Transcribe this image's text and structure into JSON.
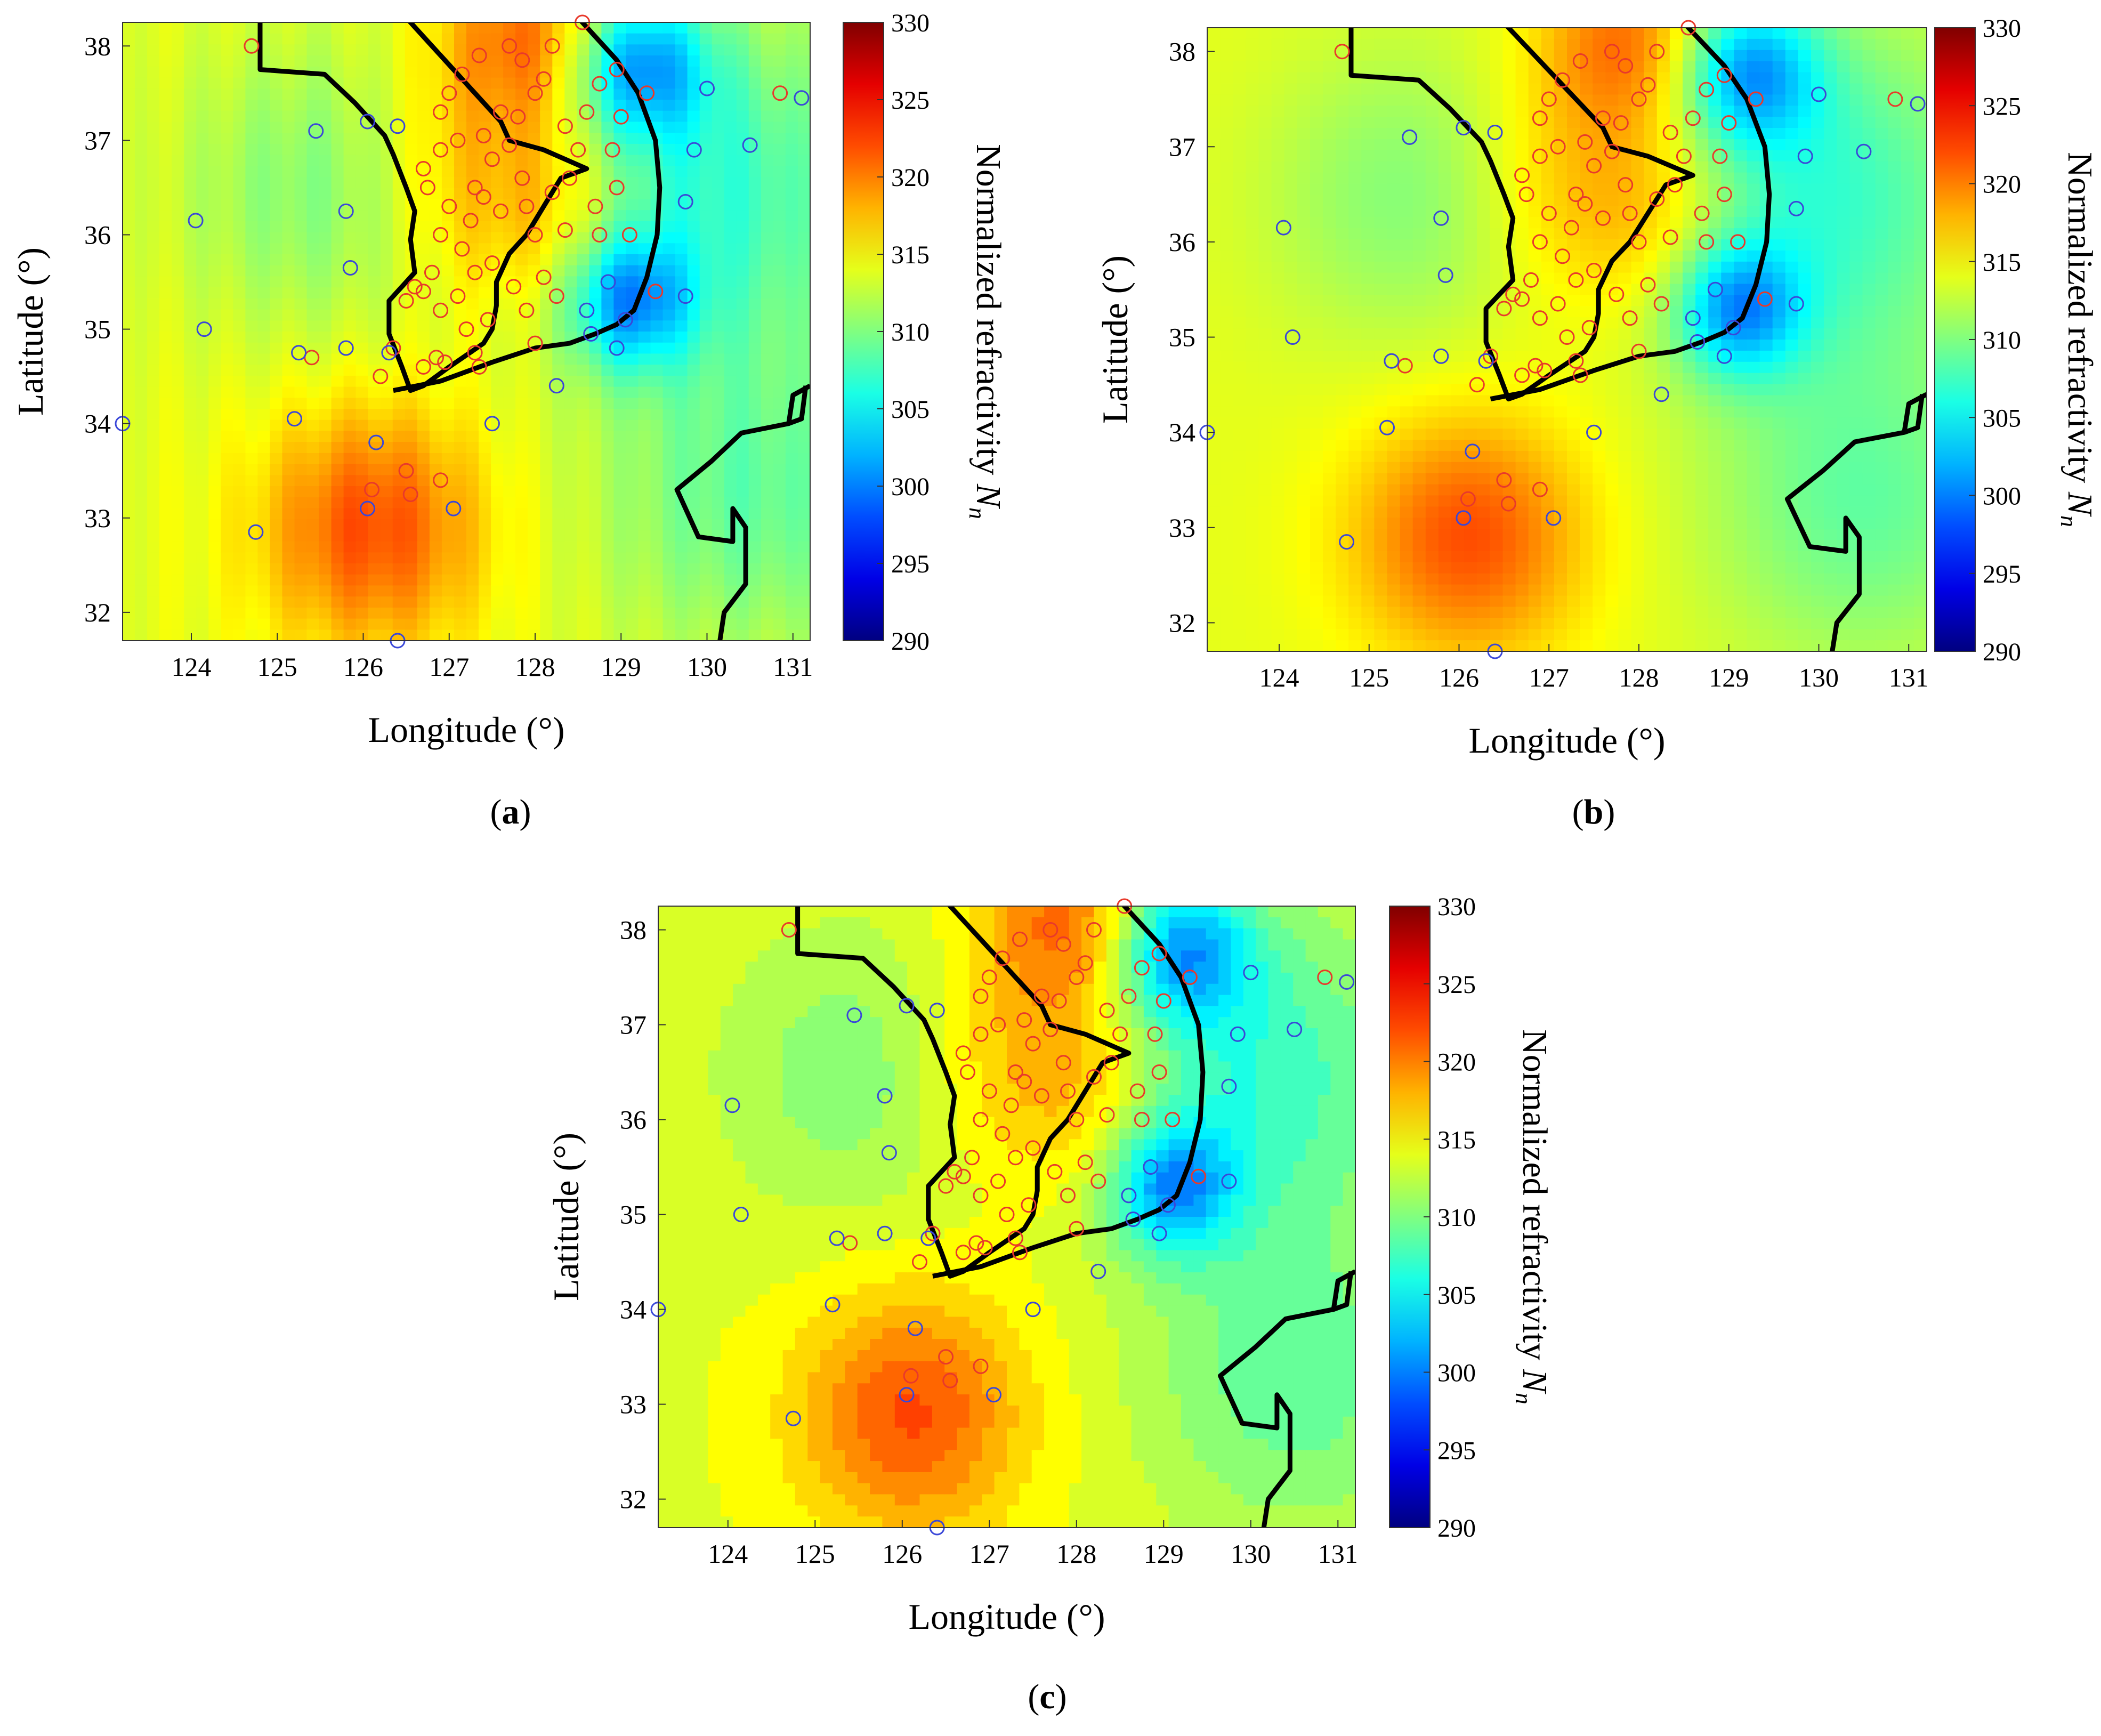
{
  "panels": [
    {
      "label_prefix": "(",
      "label": "a",
      "label_suffix": ")",
      "style": "triangulated"
    },
    {
      "label_prefix": "(",
      "label": "b",
      "label_suffix": ")",
      "style": "smooth"
    },
    {
      "label_prefix": "(",
      "label": "c",
      "label_suffix": ")",
      "style": "contour"
    }
  ],
  "colorbar": {
    "label": "Normalized refractivity ",
    "symbol": "N",
    "subscript": "n",
    "ticks": [
      330,
      325,
      320,
      315,
      310,
      305,
      300,
      295,
      290
    ]
  },
  "colors": {
    "coastline": "#000000",
    "marker_land": "#e8392b",
    "marker_sea": "#3a47d8"
  },
  "chart_data": {
    "type": "heatmap",
    "xlabel": "Longitude (°)",
    "ylabel": "Latitude (°)",
    "xlim": [
      123.2,
      131.2
    ],
    "ylim": [
      31.7,
      38.25
    ],
    "xticks": [
      124,
      125,
      126,
      127,
      128,
      129,
      130,
      131
    ],
    "yticks": [
      32,
      33,
      34,
      35,
      36,
      37,
      38
    ],
    "colorbar_range": [
      290,
      330
    ],
    "colormap": "jet",
    "coastline_korea": [
      [
        126.5,
        38.3
      ],
      [
        126.8,
        38.0
      ],
      [
        127.0,
        37.8
      ],
      [
        127.2,
        37.6
      ],
      [
        127.4,
        37.4
      ],
      [
        127.6,
        37.2
      ],
      [
        127.7,
        37.0
      ],
      [
        128.1,
        36.9
      ],
      [
        128.6,
        36.7
      ],
      [
        128.3,
        36.6
      ],
      [
        128.1,
        36.3
      ],
      [
        127.9,
        36.0
      ],
      [
        127.7,
        35.8
      ],
      [
        127.55,
        35.5
      ],
      [
        127.55,
        35.25
      ],
      [
        127.5,
        35.0
      ],
      [
        127.4,
        34.85
      ],
      [
        127.0,
        34.6
      ],
      [
        126.7,
        34.4
      ],
      [
        126.55,
        34.35
      ],
      [
        126.45,
        34.6
      ],
      [
        126.3,
        34.95
      ],
      [
        126.3,
        35.3
      ],
      [
        126.6,
        35.6
      ],
      [
        126.55,
        35.95
      ],
      [
        126.6,
        36.25
      ],
      [
        126.5,
        36.5
      ],
      [
        126.35,
        36.85
      ],
      [
        126.25,
        37.05
      ],
      [
        125.9,
        37.4
      ],
      [
        125.55,
        37.7
      ],
      [
        124.8,
        37.75
      ],
      [
        124.8,
        38.3
      ]
    ],
    "coastline_south": [
      [
        126.35,
        34.35
      ],
      [
        126.9,
        34.45
      ],
      [
        127.5,
        34.65
      ],
      [
        128.0,
        34.8
      ],
      [
        128.4,
        34.85
      ],
      [
        128.7,
        34.95
      ],
      [
        128.95,
        35.05
      ],
      [
        129.15,
        35.2
      ],
      [
        129.3,
        35.55
      ],
      [
        129.42,
        36.0
      ],
      [
        129.45,
        36.5
      ],
      [
        129.4,
        37.0
      ],
      [
        129.2,
        37.5
      ],
      [
        128.95,
        37.85
      ],
      [
        128.7,
        38.1
      ],
      [
        128.5,
        38.3
      ]
    ],
    "coastline_japan": [
      [
        131.2,
        34.4
      ],
      [
        131.0,
        34.3
      ],
      [
        130.95,
        34.0
      ],
      [
        130.4,
        33.9
      ],
      [
        130.05,
        33.6
      ],
      [
        129.65,
        33.3
      ],
      [
        129.9,
        32.8
      ],
      [
        130.3,
        32.75
      ],
      [
        130.3,
        33.1
      ],
      [
        130.45,
        32.9
      ],
      [
        130.45,
        32.3
      ],
      [
        130.2,
        32.0
      ],
      [
        130.15,
        31.7
      ]
    ],
    "coastline_japan_cap": [
      [
        130.95,
        34.0
      ],
      [
        131.1,
        34.05
      ],
      [
        131.15,
        34.4
      ]
    ],
    "stations_land": [
      [
        124.7,
        38.0
      ],
      [
        125.4,
        34.7
      ],
      [
        126.1,
        33.3
      ],
      [
        126.5,
        33.5
      ],
      [
        126.55,
        33.25
      ],
      [
        126.9,
        33.4
      ],
      [
        126.2,
        34.5
      ],
      [
        126.35,
        34.8
      ],
      [
        126.5,
        35.3
      ],
      [
        126.6,
        35.45
      ],
      [
        126.7,
        35.4
      ],
      [
        126.8,
        35.6
      ],
      [
        126.9,
        35.2
      ],
      [
        126.85,
        34.7
      ],
      [
        126.7,
        34.6
      ],
      [
        126.95,
        34.65
      ],
      [
        127.1,
        35.35
      ],
      [
        127.2,
        35.0
      ],
      [
        127.3,
        34.75
      ],
      [
        127.35,
        34.6
      ],
      [
        127.45,
        35.1
      ],
      [
        127.3,
        35.6
      ],
      [
        127.5,
        35.7
      ],
      [
        127.15,
        35.85
      ],
      [
        127.0,
        36.3
      ],
      [
        126.9,
        36.0
      ],
      [
        126.75,
        36.5
      ],
      [
        126.7,
        36.7
      ],
      [
        126.9,
        36.9
      ],
      [
        127.1,
        37.0
      ],
      [
        127.3,
        36.5
      ],
      [
        127.5,
        36.8
      ],
      [
        127.4,
        36.4
      ],
      [
        127.25,
        36.15
      ],
      [
        127.6,
        36.25
      ],
      [
        127.75,
        35.45
      ],
      [
        127.9,
        35.2
      ],
      [
        128.0,
        34.85
      ],
      [
        128.1,
        35.55
      ],
      [
        128.25,
        35.35
      ],
      [
        128.0,
        36.0
      ],
      [
        127.9,
        36.3
      ],
      [
        127.85,
        36.6
      ],
      [
        128.2,
        36.45
      ],
      [
        128.35,
        36.05
      ],
      [
        128.4,
        36.6
      ],
      [
        128.5,
        36.9
      ],
      [
        128.35,
        37.15
      ],
      [
        128.6,
        37.3
      ],
      [
        128.7,
        36.3
      ],
      [
        128.75,
        36.0
      ],
      [
        128.95,
        36.5
      ],
      [
        128.9,
        36.9
      ],
      [
        129.0,
        37.25
      ],
      [
        128.75,
        37.6
      ],
      [
        128.95,
        37.75
      ],
      [
        129.3,
        37.5
      ],
      [
        128.1,
        37.65
      ],
      [
        127.85,
        37.85
      ],
      [
        127.7,
        38.0
      ],
      [
        127.35,
        37.9
      ],
      [
        127.15,
        37.7
      ],
      [
        127.0,
        37.5
      ],
      [
        126.9,
        37.3
      ],
      [
        127.6,
        37.3
      ],
      [
        127.4,
        37.05
      ],
      [
        127.7,
        36.95
      ],
      [
        127.8,
        37.25
      ],
      [
        128.0,
        37.5
      ],
      [
        128.2,
        38.0
      ],
      [
        128.55,
        38.25
      ],
      [
        129.1,
        36.0
      ],
      [
        129.4,
        35.4
      ],
      [
        130.85,
        37.5
      ]
    ],
    "stations_sea": [
      [
        123.2,
        34.0
      ],
      [
        124.05,
        36.15
      ],
      [
        124.15,
        35.0
      ],
      [
        124.75,
        32.85
      ],
      [
        125.25,
        34.75
      ],
      [
        125.2,
        34.05
      ],
      [
        125.45,
        37.1
      ],
      [
        125.8,
        36.25
      ],
      [
        125.85,
        35.65
      ],
      [
        125.8,
        34.8
      ],
      [
        126.05,
        37.2
      ],
      [
        126.4,
        37.15
      ],
      [
        126.05,
        33.1
      ],
      [
        126.15,
        33.8
      ],
      [
        126.3,
        34.75
      ],
      [
        126.4,
        31.7
      ],
      [
        127.05,
        33.1
      ],
      [
        127.5,
        34.0
      ],
      [
        128.25,
        34.4
      ],
      [
        128.65,
        34.95
      ],
      [
        128.95,
        34.8
      ],
      [
        129.05,
        35.1
      ],
      [
        128.85,
        35.5
      ],
      [
        128.6,
        35.2
      ],
      [
        129.75,
        35.35
      ],
      [
        129.75,
        36.35
      ],
      [
        129.85,
        36.9
      ],
      [
        130.0,
        37.55
      ],
      [
        130.5,
        36.95
      ],
      [
        131.1,
        37.45
      ]
    ],
    "field_centers": [
      {
        "lon": 126.1,
        "lat": 32.9,
        "value": 322,
        "spread": 0.9
      },
      {
        "lon": 127.9,
        "lat": 38.1,
        "value": 321,
        "spread": 0.7
      },
      {
        "lon": 127.3,
        "lat": 36.6,
        "value": 318,
        "spread": 0.9
      },
      {
        "lon": 128.3,
        "lat": 36.2,
        "value": 317,
        "spread": 0.7
      },
      {
        "lon": 129.2,
        "lat": 37.8,
        "value": 303,
        "spread": 0.55
      },
      {
        "lon": 129.1,
        "lat": 35.3,
        "value": 303,
        "spread": 0.5
      },
      {
        "lon": 130.0,
        "lat": 36.5,
        "value": 307,
        "spread": 1.3
      },
      {
        "lon": 125.5,
        "lat": 36.5,
        "value": 310,
        "spread": 1.1
      },
      {
        "lon": 124.2,
        "lat": 33.5,
        "value": 314,
        "spread": 1.6
      },
      {
        "lon": 130.5,
        "lat": 33.2,
        "value": 309,
        "spread": 1.2
      }
    ],
    "field_base": 314
  }
}
